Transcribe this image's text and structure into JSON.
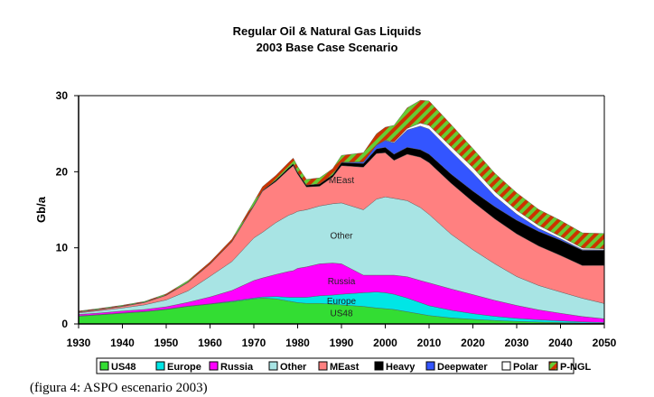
{
  "chart_data": {
    "type": "area",
    "title": "Regular Oil & Natural Gas Liquids",
    "subtitle": "2003 Base Case Scenario",
    "xlabel": "",
    "ylabel": "Gb/a",
    "xlim": [
      1930,
      2050
    ],
    "ylim": [
      0,
      30
    ],
    "x_ticks": [
      1930,
      1940,
      1950,
      1960,
      1970,
      1980,
      1990,
      2000,
      2010,
      2020,
      2030,
      2040,
      2050
    ],
    "y_ticks": [
      0,
      10,
      20,
      30
    ],
    "grid": false,
    "legend_position": "bottom",
    "x": [
      1930,
      1935,
      1940,
      1945,
      1950,
      1955,
      1960,
      1965,
      1970,
      1972,
      1975,
      1978,
      1979,
      1980,
      1982,
      1985,
      1988,
      1990,
      1995,
      1998,
      2000,
      2002,
      2005,
      2008,
      2010,
      2015,
      2020,
      2025,
      2030,
      2035,
      2040,
      2045,
      2050
    ],
    "series": [
      {
        "name": "US48",
        "color": "#33dd33",
        "values": [
          1.0,
          1.2,
          1.4,
          1.6,
          1.9,
          2.3,
          2.6,
          2.9,
          3.3,
          3.4,
          3.3,
          3.0,
          2.9,
          2.8,
          2.7,
          2.7,
          2.6,
          2.5,
          2.3,
          2.1,
          2.0,
          1.9,
          1.6,
          1.3,
          1.1,
          0.8,
          0.6,
          0.45,
          0.33,
          0.25,
          0.18,
          0.12,
          0.08
        ]
      },
      {
        "name": "Europe",
        "color": "#00e6e6",
        "values": [
          0.05,
          0.05,
          0.05,
          0.05,
          0.05,
          0.05,
          0.05,
          0.1,
          0.1,
          0.15,
          0.3,
          0.5,
          0.6,
          0.7,
          0.8,
          1.0,
          1.2,
          1.4,
          1.8,
          2.1,
          2.1,
          2.0,
          1.8,
          1.5,
          1.3,
          1.0,
          0.75,
          0.55,
          0.4,
          0.3,
          0.22,
          0.15,
          0.1
        ]
      },
      {
        "name": "Russia",
        "color": "#ff00ff",
        "values": [
          0.2,
          0.2,
          0.25,
          0.25,
          0.3,
          0.5,
          0.9,
          1.4,
          2.3,
          2.5,
          2.9,
          3.4,
          3.5,
          3.8,
          4.0,
          4.2,
          4.2,
          4.0,
          2.3,
          2.2,
          2.3,
          2.5,
          2.8,
          2.9,
          3.0,
          2.8,
          2.5,
          2.1,
          1.7,
          1.3,
          1.0,
          0.7,
          0.5
        ]
      },
      {
        "name": "Other",
        "color": "#a8e4e4",
        "values": [
          0.2,
          0.3,
          0.4,
          0.6,
          0.9,
          1.5,
          2.7,
          3.8,
          5.6,
          6.0,
          6.8,
          7.4,
          7.5,
          7.5,
          7.5,
          7.6,
          7.8,
          8.0,
          8.6,
          10.0,
          10.3,
          10.1,
          10.0,
          9.6,
          9.0,
          7.2,
          5.9,
          4.8,
          3.8,
          3.2,
          2.8,
          2.4,
          2.0
        ]
      },
      {
        "name": "MEast",
        "color": "#ff8080",
        "values": [
          0.1,
          0.15,
          0.2,
          0.3,
          0.6,
          1.1,
          1.6,
          2.6,
          4.2,
          5.4,
          5.4,
          6.0,
          6.3,
          4.9,
          3.0,
          2.6,
          3.5,
          4.9,
          5.6,
          6.0,
          5.8,
          5.0,
          6.1,
          6.6,
          6.8,
          6.7,
          6.3,
          5.9,
          5.6,
          5.2,
          4.8,
          4.3,
          5.0
        ]
      },
      {
        "name": "Heavy",
        "color": "#000000",
        "values": [
          0.05,
          0.05,
          0.05,
          0.05,
          0.05,
          0.05,
          0.05,
          0.05,
          0.1,
          0.1,
          0.2,
          0.25,
          0.25,
          0.25,
          0.25,
          0.3,
          0.3,
          0.4,
          0.5,
          0.6,
          0.7,
          0.8,
          0.9,
          1.0,
          1.1,
          1.2,
          1.4,
          1.6,
          1.8,
          1.9,
          2.0,
          2.0,
          2.0
        ]
      },
      {
        "name": "Deepwater",
        "color": "#3355ff",
        "values": [
          0,
          0,
          0,
          0,
          0,
          0,
          0,
          0,
          0,
          0,
          0,
          0,
          0,
          0,
          0,
          0,
          0,
          0.05,
          0.2,
          0.5,
          0.9,
          1.5,
          2.3,
          3.1,
          3.3,
          3.0,
          2.4,
          1.4,
          0.8,
          0.4,
          0.2,
          0.1,
          0.05
        ]
      },
      {
        "name": "Polar",
        "color": "#ffffff",
        "values": [
          0,
          0,
          0,
          0,
          0,
          0,
          0,
          0,
          0,
          0,
          0,
          0,
          0,
          0,
          0,
          0,
          0,
          0,
          0,
          0,
          0.05,
          0.1,
          0.2,
          0.4,
          0.5,
          0.6,
          0.7,
          0.6,
          0.5,
          0.4,
          0.3,
          0.2,
          0.15
        ]
      },
      {
        "name": "P-NGL",
        "color": "#cc3300",
        "color2": "#66cc33",
        "values": [
          0.1,
          0.1,
          0.1,
          0.1,
          0.15,
          0.2,
          0.25,
          0.3,
          0.45,
          0.5,
          0.6,
          0.7,
          0.75,
          0.75,
          0.75,
          0.8,
          0.8,
          0.9,
          1.2,
          1.5,
          1.7,
          2.2,
          2.7,
          3.0,
          3.2,
          2.9,
          2.5,
          2.4,
          2.3,
          2.1,
          2.1,
          2.0,
          2.0
        ]
      }
    ],
    "annotations": [
      {
        "text": "MEast",
        "x": 1990,
        "y": 18.5
      },
      {
        "text": "Other",
        "x": 1990,
        "y": 11.2
      },
      {
        "text": "Russia",
        "x": 1990,
        "y": 5.2
      },
      {
        "text": "Europe",
        "x": 1990,
        "y": 2.6
      },
      {
        "text": "US48",
        "x": 1990,
        "y": 1.0
      }
    ]
  },
  "caption": "(figura 4: ASPO escenario 2003)"
}
